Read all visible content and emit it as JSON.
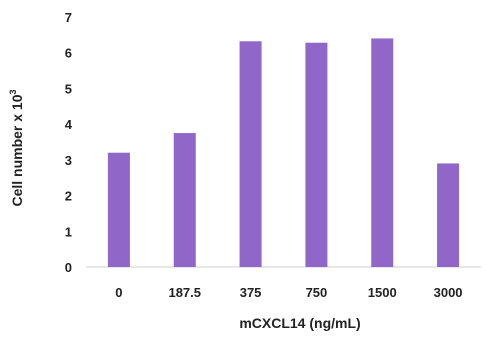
{
  "chart_data": {
    "type": "bar",
    "categories": [
      "0",
      "187.5",
      "375",
      "750",
      "1500",
      "3000"
    ],
    "values": [
      3.2,
      3.75,
      6.32,
      6.28,
      6.4,
      2.9
    ],
    "xlabel": "mCXCL14 (ng/mL)",
    "ylabel": "Cell number x 10",
    "ylabel_superscript": "3",
    "ylim": [
      0,
      7
    ],
    "yticks": [
      "0",
      "1",
      "2",
      "3",
      "4",
      "5",
      "6",
      "7"
    ],
    "grid": false,
    "bar_color": "#9166c9",
    "axis_color": "#d0d0d0"
  }
}
